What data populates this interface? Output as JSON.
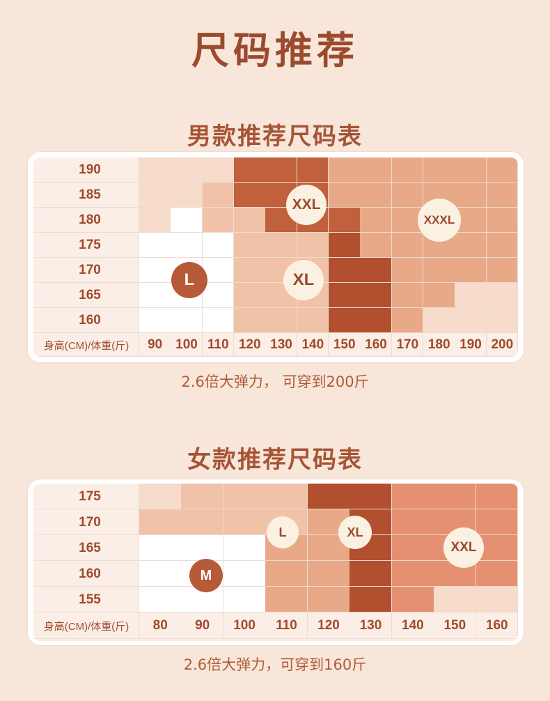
{
  "title": "尺码推荐",
  "men": {
    "title": "男款推荐尺码表",
    "axis_label": "身高(CM)/体重(斤)",
    "heights": [
      "190",
      "185",
      "180",
      "175",
      "170",
      "165",
      "160"
    ],
    "weights": [
      "90",
      "100",
      "110",
      "120",
      "130",
      "140",
      "150",
      "160",
      "170",
      "180",
      "190",
      "200"
    ],
    "note": "2.6倍大弹力， 可穿到200斤",
    "sizes": [
      {
        "label": "L",
        "text_color": "#ffffff",
        "fill": "#b75a38"
      },
      {
        "label": "XL",
        "text_color": "#9b4a2e",
        "fill": "#fbf1e2"
      },
      {
        "label": "XXL",
        "text_color": "#9b4a2e",
        "fill": "#fbf1e2"
      },
      {
        "label": "XXXL",
        "text_color": "#9b4a2e",
        "fill": "#fbf1e2"
      }
    ]
  },
  "women": {
    "title": "女款推荐尺码表",
    "axis_label": "身高(CM)/体重(斤)",
    "heights": [
      "175",
      "170",
      "165",
      "160",
      "155"
    ],
    "weights": [
      "80",
      "90",
      "100",
      "110",
      "120",
      "130",
      "140",
      "150",
      "160"
    ],
    "note": "2.6倍大弹力，可穿到160斤",
    "sizes": [
      {
        "label": "M",
        "text_color": "#ffffff",
        "fill": "#b75a38"
      },
      {
        "label": "L",
        "text_color": "#9b4a2e",
        "fill": "#fbf1e2"
      },
      {
        "label": "XL",
        "text_color": "#9b4a2e",
        "fill": "#fbf1e2"
      },
      {
        "label": "XXL",
        "text_color": "#9b4a2e",
        "fill": "#fbf1e2"
      }
    ]
  },
  "colors": {
    "white": "#ffffff",
    "light": "#f7dccb",
    "peach": "#f0c2a8",
    "tan": "#e8a989",
    "brown": "#c0603d",
    "dark": "#b24f2f",
    "salmon": "#e69072",
    "bg_cell": "#fbeee6"
  }
}
